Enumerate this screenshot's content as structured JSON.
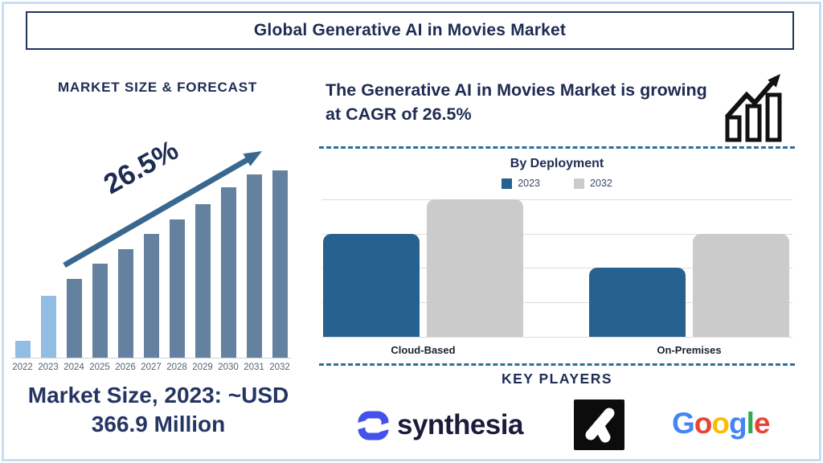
{
  "header": {
    "title": "Global Generative AI in Movies Market"
  },
  "left_panel": {
    "heading": "MARKET SIZE & FORECAST",
    "cagr_annotation": "26.5%",
    "caption_line1": "Market Size, 2023: ~USD",
    "caption_line2": "366.9 Million"
  },
  "right_panel": {
    "cagr_text": "The Generative AI in Movies Market is growing at CAGR of 26.5%",
    "growth_icon": "bar-chart-with-rising-arrow-icon",
    "deployment_title": "By Deployment",
    "key_players_heading": "KEY PLAYERS",
    "players": [
      {
        "name": "synthesia",
        "wordmark": "synthesia",
        "icon_color": "#4353E9",
        "text_color": "#191D3B"
      },
      {
        "name": "runway",
        "mark": "white-branch-mark-on-black-square"
      },
      {
        "name": "Google",
        "letters": [
          {
            "ch": "G",
            "color": "#4285F4"
          },
          {
            "ch": "o",
            "color": "#EA4335"
          },
          {
            "ch": "o",
            "color": "#FBBC05"
          },
          {
            "ch": "g",
            "color": "#4285F4"
          },
          {
            "ch": "l",
            "color": "#34A853"
          },
          {
            "ch": "e",
            "color": "#EA4335"
          }
        ]
      }
    ]
  },
  "chart_data": [
    {
      "type": "bar",
      "title": "MARKET SIZE & FORECAST",
      "categories": [
        "2022",
        "2023",
        "2024",
        "2025",
        "2026",
        "2027",
        "2028",
        "2029",
        "2030",
        "2031",
        "2032"
      ],
      "values_pct_of_max": [
        9,
        33,
        42,
        50,
        58,
        66,
        74,
        82,
        91,
        98,
        100
      ],
      "bar_palette": {
        "light": "#92BDE2",
        "dark": "#64819F"
      },
      "light_bar_indices": [
        0,
        1
      ],
      "annotation": "26.5%",
      "labeled_value": "Market Size, 2023: ~USD 366.9 Million",
      "xlabel": "",
      "ylabel": "",
      "grid": false,
      "note": "y-axis unlabeled; bar heights estimated as percent of tallest (2032) bar"
    },
    {
      "type": "bar",
      "title": "By Deployment",
      "categories": [
        "Cloud-Based",
        "On-Premises"
      ],
      "series": [
        {
          "name": "2023",
          "color": "#27618F",
          "values": [
            3,
            2
          ]
        },
        {
          "name": "2032",
          "color": "#CBCBCB",
          "values": [
            4,
            3
          ]
        }
      ],
      "ylim": [
        0,
        4
      ],
      "value_units": "unlabeled gridline units (estimated)",
      "grid": true,
      "legend_position": "top"
    }
  ],
  "colors": {
    "navy_text": "#1E2C52",
    "frame_border": "#C9DCF0",
    "title_box_border": "#22355C",
    "growth_arrow": "#38678F",
    "dashed_divider": "#2D6F99",
    "gridline": "#DCDCDC",
    "year_label": "#566273"
  }
}
